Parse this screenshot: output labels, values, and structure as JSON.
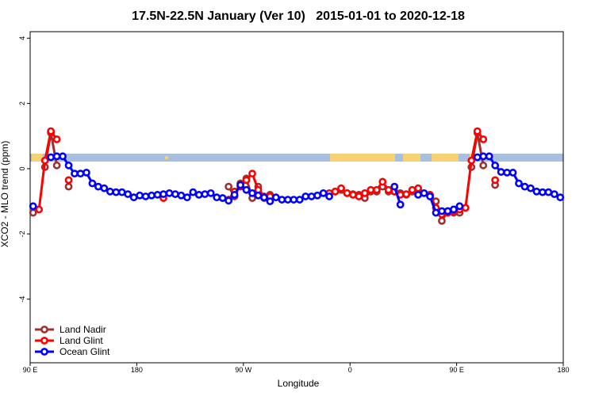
{
  "chart_data": {
    "type": "line",
    "title": "17.5N-22.5N January (Ver 10)   2015-01-01 to 2020-12-18",
    "x_label": "Longitude",
    "y_label": "XCO2 - MLO trend (ppm)",
    "xlim": [
      90,
      540
    ],
    "ylim": [
      -5.95,
      4.2
    ],
    "xticks": [
      {
        "value": 90,
        "label": "90 E"
      },
      180,
      {
        "value": 270,
        "label": "90 W"
      },
      {
        "value": 360,
        "label": "0"
      },
      {
        "value": 450,
        "label": "90 E"
      },
      {
        "value": 540,
        "label": "180"
      }
    ],
    "yticks": [
      -4,
      -2,
      0,
      2,
      4
    ],
    "legend": "bottom-left",
    "x": [
      92.5,
      97.5,
      102.5,
      107.5,
      112.5,
      117.5,
      122.5,
      127.5,
      132.5,
      137.5,
      142.5,
      147.5,
      152.5,
      157.5,
      162.5,
      167.5,
      172.5,
      177.5,
      182.5,
      187.5,
      192.5,
      197.5,
      202.5,
      207.5,
      212.5,
      217.5,
      222.5,
      227.5,
      232.5,
      237.5,
      242.5,
      247.5,
      252.5,
      257.5,
      262.5,
      267.5,
      272.5,
      277.5,
      282.5,
      287.5,
      292.5,
      297.5,
      302.5,
      307.5,
      312.5,
      317.5,
      322.5,
      327.5,
      332.5,
      337.5,
      342.5,
      347.5,
      352.5,
      357.5,
      362.5,
      367.5,
      372.5,
      377.5,
      382.5,
      387.5,
      392.5,
      397.5,
      402.5,
      407.5,
      412.5,
      417.5,
      422.5,
      427.5,
      432.5,
      437.5,
      442.5,
      447.5,
      452.5,
      457.5,
      462.5,
      467.5,
      472.5,
      477.5,
      482.5,
      487.5,
      492.5,
      497.5,
      502.5,
      507.5,
      512.5,
      517.5,
      522.5,
      527.5,
      532.5,
      537.5
    ],
    "series": [
      {
        "name": "Land Nadir",
        "color": "#a03030",
        "values": [
          -1.35,
          null,
          0.05,
          1.1,
          0.1,
          null,
          -0.55,
          null,
          null,
          null,
          null,
          null,
          null,
          null,
          null,
          null,
          null,
          null,
          null,
          null,
          null,
          null,
          null,
          null,
          null,
          null,
          null,
          null,
          null,
          null,
          null,
          null,
          null,
          -0.55,
          -0.85,
          -0.45,
          -0.3,
          -0.9,
          -0.55,
          -0.9,
          -0.8,
          null,
          null,
          null,
          null,
          null,
          null,
          null,
          null,
          null,
          -0.8,
          -0.7,
          -0.65,
          -0.75,
          -0.78,
          -0.8,
          -0.9,
          -0.7,
          -0.7,
          -0.55,
          -0.7,
          -0.7,
          -0.75,
          -0.8,
          -0.7,
          -0.65,
          null,
          -0.8,
          -1.0,
          -1.6,
          -1.3,
          -1.35,
          -1.35,
          null,
          0.05,
          1.1,
          0.1,
          null,
          -0.5,
          null,
          null,
          null,
          null,
          null,
          null,
          null,
          null,
          null,
          null,
          null
        ]
      },
      {
        "name": "Land Glint",
        "color": "#ff0000",
        "values": [
          null,
          -1.25,
          0.25,
          1.15,
          0.9,
          null,
          -0.35,
          null,
          null,
          null,
          null,
          null,
          null,
          null,
          null,
          null,
          null,
          null,
          null,
          null,
          null,
          null,
          -0.9,
          null,
          null,
          null,
          null,
          null,
          null,
          null,
          null,
          null,
          null,
          -0.95,
          -0.7,
          -0.55,
          -0.35,
          -0.15,
          -0.65,
          -0.85,
          -0.85,
          null,
          null,
          null,
          null,
          null,
          null,
          null,
          null,
          null,
          -0.75,
          -0.7,
          -0.6,
          -0.75,
          -0.8,
          -0.85,
          -0.75,
          -0.65,
          -0.65,
          -0.4,
          -0.65,
          -0.7,
          -0.8,
          -0.78,
          -0.65,
          -0.6,
          null,
          -0.8,
          -1.2,
          -1.4,
          -1.35,
          -1.3,
          -1.25,
          -1.2,
          0.25,
          1.15,
          0.9,
          null,
          -0.35,
          null,
          null,
          null,
          null,
          null,
          null,
          null,
          null,
          null,
          null,
          null
        ]
      },
      {
        "name": "Ocean Glint",
        "color": "#0000ff",
        "values": [
          -1.15,
          null,
          null,
          0.35,
          0.38,
          0.38,
          0.1,
          -0.15,
          -0.15,
          -0.12,
          -0.45,
          -0.55,
          -0.6,
          -0.7,
          -0.72,
          -0.72,
          -0.78,
          -0.88,
          -0.82,
          -0.85,
          -0.82,
          -0.8,
          -0.78,
          -0.75,
          -0.78,
          -0.82,
          -0.88,
          -0.72,
          -0.8,
          -0.78,
          -0.75,
          -0.88,
          -0.9,
          -0.98,
          -0.8,
          -0.5,
          -0.65,
          -0.75,
          -0.82,
          -0.88,
          -1.0,
          -0.88,
          -0.95,
          -0.95,
          -0.95,
          -0.95,
          -0.85,
          -0.85,
          -0.82,
          -0.75,
          -0.85,
          null,
          null,
          null,
          null,
          null,
          null,
          null,
          null,
          null,
          null,
          -0.55,
          -1.1,
          null,
          null,
          -0.8,
          -0.75,
          -0.85,
          -1.35,
          -1.3,
          -1.3,
          -1.25,
          -1.15,
          null,
          null,
          0.35,
          0.38,
          0.38,
          0.1,
          -0.1,
          -0.12,
          -0.12,
          -0.45,
          -0.55,
          -0.6,
          -0.7,
          -0.72,
          -0.72,
          -0.78,
          -0.88
        ]
      }
    ]
  }
}
